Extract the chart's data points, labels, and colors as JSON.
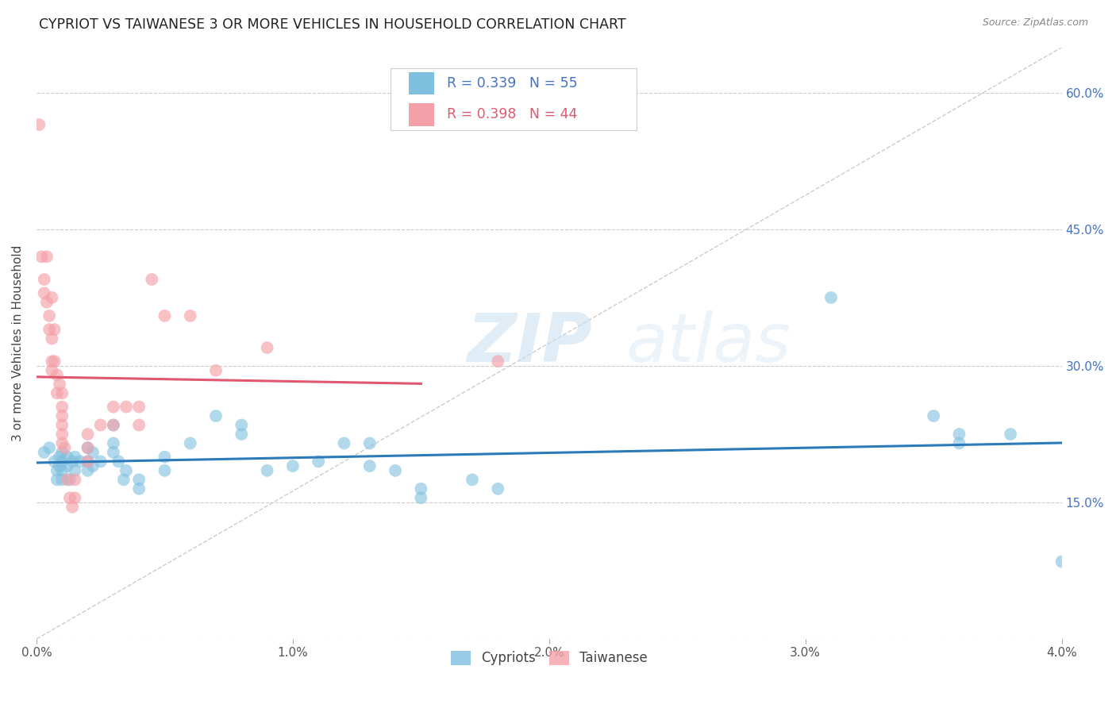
{
  "title": "CYPRIOT VS TAIWANESE 3 OR MORE VEHICLES IN HOUSEHOLD CORRELATION CHART",
  "source": "Source: ZipAtlas.com",
  "ylabel": "3 or more Vehicles in Household",
  "xlim": [
    0.0,
    0.04
  ],
  "ylim": [
    0.0,
    0.65
  ],
  "xticks": [
    0.0,
    0.01,
    0.02,
    0.03,
    0.04
  ],
  "yticks": [
    0.0,
    0.15,
    0.3,
    0.45,
    0.6
  ],
  "xticklabels": [
    "0.0%",
    "1.0%",
    "2.0%",
    "3.0%",
    "4.0%"
  ],
  "yticklabels": [
    "",
    "15.0%",
    "30.0%",
    "45.0%",
    "60.0%"
  ],
  "blue_R": 0.339,
  "blue_N": 55,
  "pink_R": 0.398,
  "pink_N": 44,
  "blue_color": "#7fbfdf",
  "pink_color": "#f4a0a8",
  "blue_line_color": "#2b7bba",
  "pink_line_color": "#e05870",
  "legend_blue_label": "Cypriots",
  "legend_pink_label": "Taiwanese",
  "watermark_zip": "ZIP",
  "watermark_atlas": "atlas",
  "blue_points": [
    [
      0.0003,
      0.205
    ],
    [
      0.0005,
      0.21
    ],
    [
      0.0007,
      0.195
    ],
    [
      0.0008,
      0.185
    ],
    [
      0.0008,
      0.175
    ],
    [
      0.0009,
      0.2
    ],
    [
      0.0009,
      0.19
    ],
    [
      0.001,
      0.205
    ],
    [
      0.001,
      0.195
    ],
    [
      0.001,
      0.185
    ],
    [
      0.001,
      0.175
    ],
    [
      0.0012,
      0.2
    ],
    [
      0.0012,
      0.19
    ],
    [
      0.0013,
      0.175
    ],
    [
      0.0014,
      0.195
    ],
    [
      0.0015,
      0.2
    ],
    [
      0.0015,
      0.185
    ],
    [
      0.0017,
      0.195
    ],
    [
      0.002,
      0.21
    ],
    [
      0.002,
      0.195
    ],
    [
      0.002,
      0.185
    ],
    [
      0.0022,
      0.205
    ],
    [
      0.0022,
      0.19
    ],
    [
      0.0025,
      0.195
    ],
    [
      0.003,
      0.235
    ],
    [
      0.003,
      0.215
    ],
    [
      0.003,
      0.205
    ],
    [
      0.0032,
      0.195
    ],
    [
      0.0034,
      0.175
    ],
    [
      0.0035,
      0.185
    ],
    [
      0.004,
      0.175
    ],
    [
      0.004,
      0.165
    ],
    [
      0.005,
      0.2
    ],
    [
      0.005,
      0.185
    ],
    [
      0.006,
      0.215
    ],
    [
      0.007,
      0.245
    ],
    [
      0.008,
      0.235
    ],
    [
      0.008,
      0.225
    ],
    [
      0.009,
      0.185
    ],
    [
      0.01,
      0.19
    ],
    [
      0.011,
      0.195
    ],
    [
      0.012,
      0.215
    ],
    [
      0.013,
      0.215
    ],
    [
      0.013,
      0.19
    ],
    [
      0.014,
      0.185
    ],
    [
      0.015,
      0.165
    ],
    [
      0.015,
      0.155
    ],
    [
      0.017,
      0.175
    ],
    [
      0.018,
      0.165
    ],
    [
      0.031,
      0.375
    ],
    [
      0.035,
      0.245
    ],
    [
      0.036,
      0.225
    ],
    [
      0.036,
      0.215
    ],
    [
      0.038,
      0.225
    ],
    [
      0.04,
      0.085
    ]
  ],
  "pink_points": [
    [
      0.0001,
      0.565
    ],
    [
      0.0002,
      0.42
    ],
    [
      0.0003,
      0.395
    ],
    [
      0.0003,
      0.38
    ],
    [
      0.0004,
      0.42
    ],
    [
      0.0004,
      0.37
    ],
    [
      0.0005,
      0.355
    ],
    [
      0.0005,
      0.34
    ],
    [
      0.0006,
      0.375
    ],
    [
      0.0006,
      0.33
    ],
    [
      0.0006,
      0.305
    ],
    [
      0.0006,
      0.295
    ],
    [
      0.0007,
      0.34
    ],
    [
      0.0007,
      0.305
    ],
    [
      0.0008,
      0.29
    ],
    [
      0.0008,
      0.27
    ],
    [
      0.0009,
      0.28
    ],
    [
      0.001,
      0.27
    ],
    [
      0.001,
      0.255
    ],
    [
      0.001,
      0.245
    ],
    [
      0.001,
      0.235
    ],
    [
      0.001,
      0.225
    ],
    [
      0.001,
      0.215
    ],
    [
      0.0011,
      0.21
    ],
    [
      0.0012,
      0.175
    ],
    [
      0.0013,
      0.155
    ],
    [
      0.0014,
      0.145
    ],
    [
      0.0015,
      0.175
    ],
    [
      0.0015,
      0.155
    ],
    [
      0.002,
      0.225
    ],
    [
      0.002,
      0.21
    ],
    [
      0.002,
      0.195
    ],
    [
      0.0025,
      0.235
    ],
    [
      0.003,
      0.255
    ],
    [
      0.003,
      0.235
    ],
    [
      0.0035,
      0.255
    ],
    [
      0.004,
      0.255
    ],
    [
      0.004,
      0.235
    ],
    [
      0.0045,
      0.395
    ],
    [
      0.005,
      0.355
    ],
    [
      0.006,
      0.355
    ],
    [
      0.007,
      0.295
    ],
    [
      0.009,
      0.32
    ],
    [
      0.018,
      0.305
    ]
  ],
  "background_color": "#ffffff",
  "grid_color": "#cccccc",
  "tick_label_color_right": "#4472c4",
  "figsize": [
    14.06,
    8.92
  ],
  "dpi": 100
}
